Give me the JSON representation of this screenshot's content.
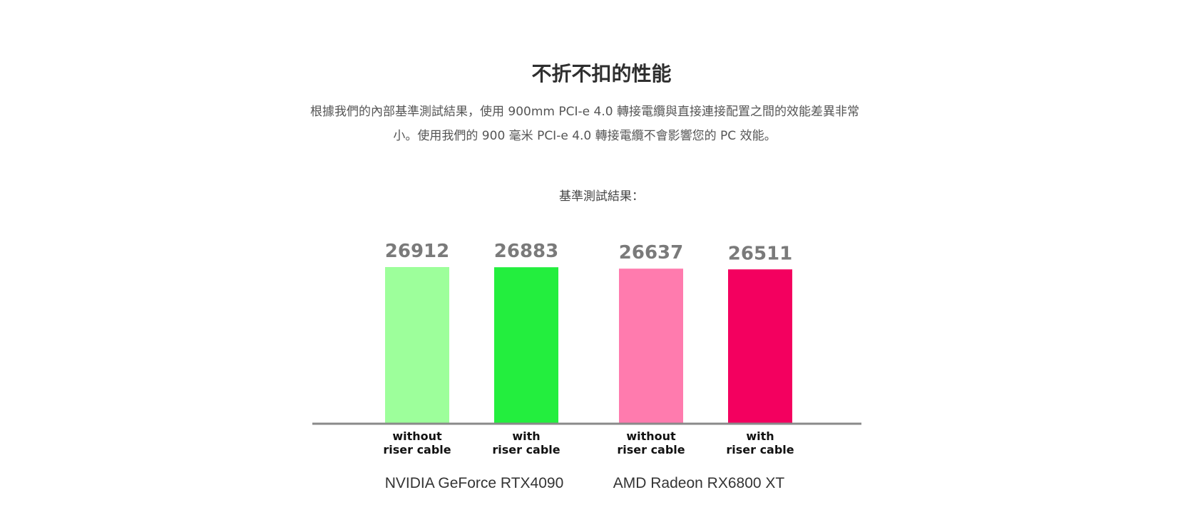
{
  "header": {
    "title": "不折不扣的性能",
    "description_line1": "根據我們的內部基準測試結果，使用 900mm PCI-e 4.0 轉接電纜與直接連接配置之間的效能差異非常",
    "description_line2": "小。使用我們的 900 毫米 PCI-e 4.0 轉接電纜不會影響您的 PC 效能。",
    "subheading": "基準測試結果："
  },
  "chart_data": {
    "type": "bar",
    "title": "",
    "xlabel": "",
    "ylabel": "",
    "ylim": [
      0,
      26912
    ],
    "grid": false,
    "legend": "none",
    "bars": [
      {
        "group": "NVIDIA GeForce RTX4090",
        "category_line1": "without",
        "category_line2": "riser cable",
        "value": 26912,
        "color": "#9dff9b"
      },
      {
        "group": "NVIDIA GeForce RTX4090",
        "category_line1": "with",
        "category_line2": "riser cable",
        "value": 26883,
        "color": "#23ee3e"
      },
      {
        "group": "AMD Radeon RX6800 XT",
        "category_line1": "without",
        "category_line2": "riser cable",
        "value": 26637,
        "color": "#ff7bae"
      },
      {
        "group": "AMD Radeon RX6800 XT",
        "category_line1": "with",
        "category_line2": "riser cable",
        "value": 26511,
        "color": "#f3005f"
      }
    ],
    "groups": [
      "NVIDIA GeForce RTX4090",
      "AMD Radeon RX6800 XT"
    ],
    "axis_color": "#8a8a8a"
  }
}
